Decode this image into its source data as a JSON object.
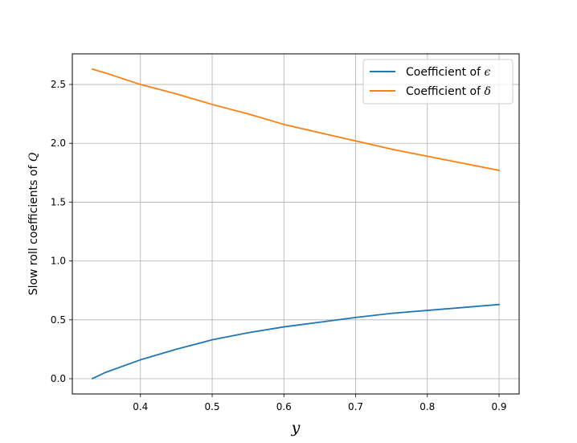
{
  "chart_data": {
    "type": "line",
    "xlabel": "y",
    "ylabel_text": "Slow roll coefficients of ",
    "ylabel_symbol": "Q",
    "xlim": [
      0.305,
      0.928
    ],
    "ylim": [
      -0.13,
      2.76
    ],
    "x_ticks": [
      0.4,
      0.5,
      0.6,
      0.7,
      0.8,
      0.9
    ],
    "x_tick_labels": [
      "0.4",
      "0.5",
      "0.6",
      "0.7",
      "0.8",
      "0.9"
    ],
    "y_ticks": [
      0.0,
      0.5,
      1.0,
      1.5,
      2.0,
      2.5
    ],
    "y_tick_labels": [
      "0.0",
      "0.5",
      "1.0",
      "1.5",
      "2.0",
      "2.5"
    ],
    "grid": true,
    "legend_position": "top-right",
    "series": [
      {
        "name_text": "Coefficient of ",
        "name_symbol": "ϵ",
        "color": "#1f77b4",
        "x": [
          0.333,
          0.35,
          0.4,
          0.45,
          0.5,
          0.55,
          0.6,
          0.65,
          0.7,
          0.75,
          0.8,
          0.85,
          0.9
        ],
        "y": [
          0.0,
          0.05,
          0.16,
          0.25,
          0.33,
          0.39,
          0.44,
          0.48,
          0.52,
          0.555,
          0.58,
          0.605,
          0.63
        ]
      },
      {
        "name_text": "Coefficient of ",
        "name_symbol": "δ",
        "color": "#ff7f0e",
        "x": [
          0.333,
          0.35,
          0.4,
          0.45,
          0.5,
          0.55,
          0.6,
          0.65,
          0.7,
          0.75,
          0.8,
          0.85,
          0.9
        ],
        "y": [
          2.63,
          2.6,
          2.5,
          2.42,
          2.33,
          2.25,
          2.16,
          2.09,
          2.02,
          1.95,
          1.89,
          1.83,
          1.77
        ]
      }
    ]
  }
}
